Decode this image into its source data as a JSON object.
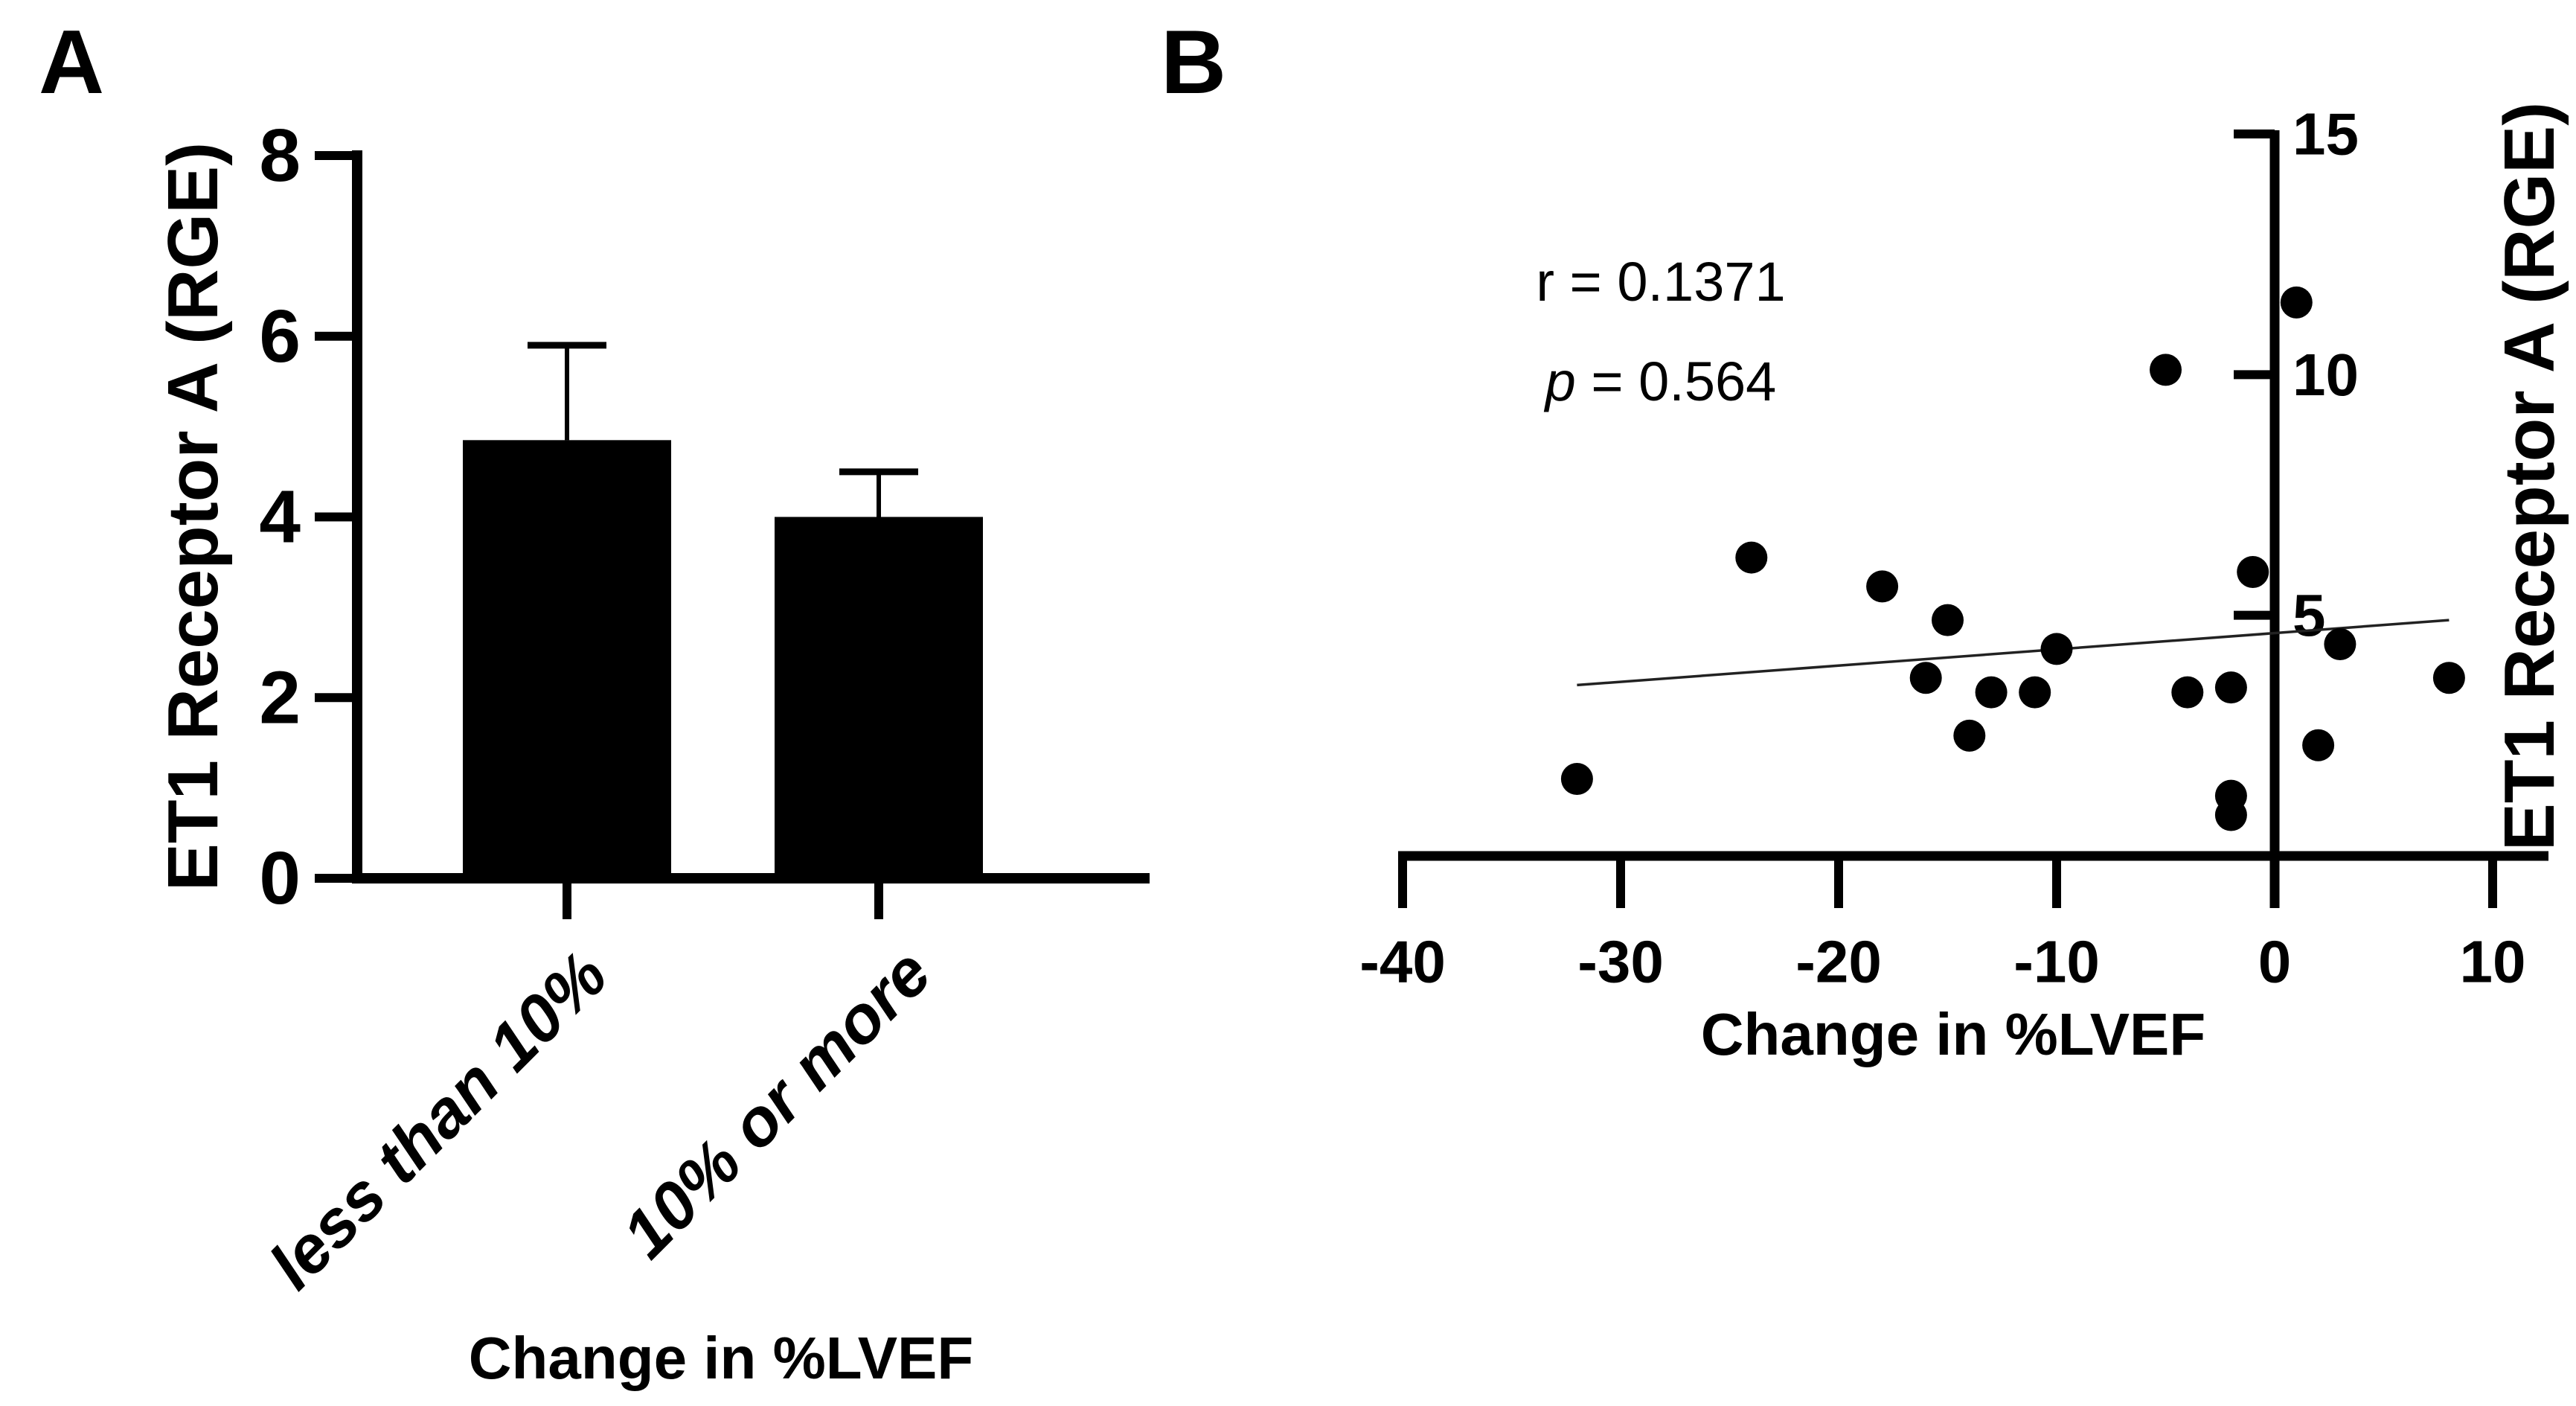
{
  "figure": {
    "panel_a_letter": "A",
    "panel_b_letter": "B"
  },
  "chart_data": [
    {
      "type": "bar",
      "panel": "A",
      "title": "",
      "xlabel": "Change in %LVEF",
      "ylabel": "ET1 Receptor A (RGE)",
      "categories": [
        "less than 10%",
        "10% or more"
      ],
      "values": [
        4.85,
        4.0
      ],
      "error_plus": [
        1.05,
        0.5
      ],
      "ylim": [
        0,
        8
      ],
      "yticks": [
        0,
        2,
        4,
        6,
        8
      ],
      "bar_color": "#000000",
      "grid": "off"
    },
    {
      "type": "scatter",
      "panel": "B",
      "title": "",
      "xlabel": "Change in %LVEF",
      "ylabel": "ET1 Receptor A (RGE)",
      "xlim": [
        -40,
        10
      ],
      "xticks": [
        -40,
        -30,
        -20,
        -10,
        0,
        10
      ],
      "ylim": [
        0,
        15
      ],
      "yticks": [
        5,
        10,
        15
      ],
      "points": [
        [
          -32,
          1.6
        ],
        [
          -24,
          6.2
        ],
        [
          -18,
          5.6
        ],
        [
          -16,
          3.7
        ],
        [
          -15,
          4.9
        ],
        [
          -14,
          2.5
        ],
        [
          -13,
          3.4
        ],
        [
          -11,
          3.4
        ],
        [
          -10,
          4.3
        ],
        [
          -5,
          10.1
        ],
        [
          -4,
          3.4
        ],
        [
          -2,
          3.5
        ],
        [
          -1,
          5.9
        ],
        [
          -2,
          1.25
        ],
        [
          -2,
          0.85
        ],
        [
          1,
          11.5
        ],
        [
          2,
          2.3
        ],
        [
          3,
          4.4
        ],
        [
          8,
          3.7
        ]
      ],
      "regression_line": {
        "x1": -32,
        "y1": 3.55,
        "x2": 8,
        "y2": 4.9
      },
      "annotation": {
        "r_label": "r = 0.1371",
        "p_symbol": "p",
        "p_rest": " = 0.564"
      },
      "point_color": "#000000",
      "grid": "off"
    }
  ]
}
